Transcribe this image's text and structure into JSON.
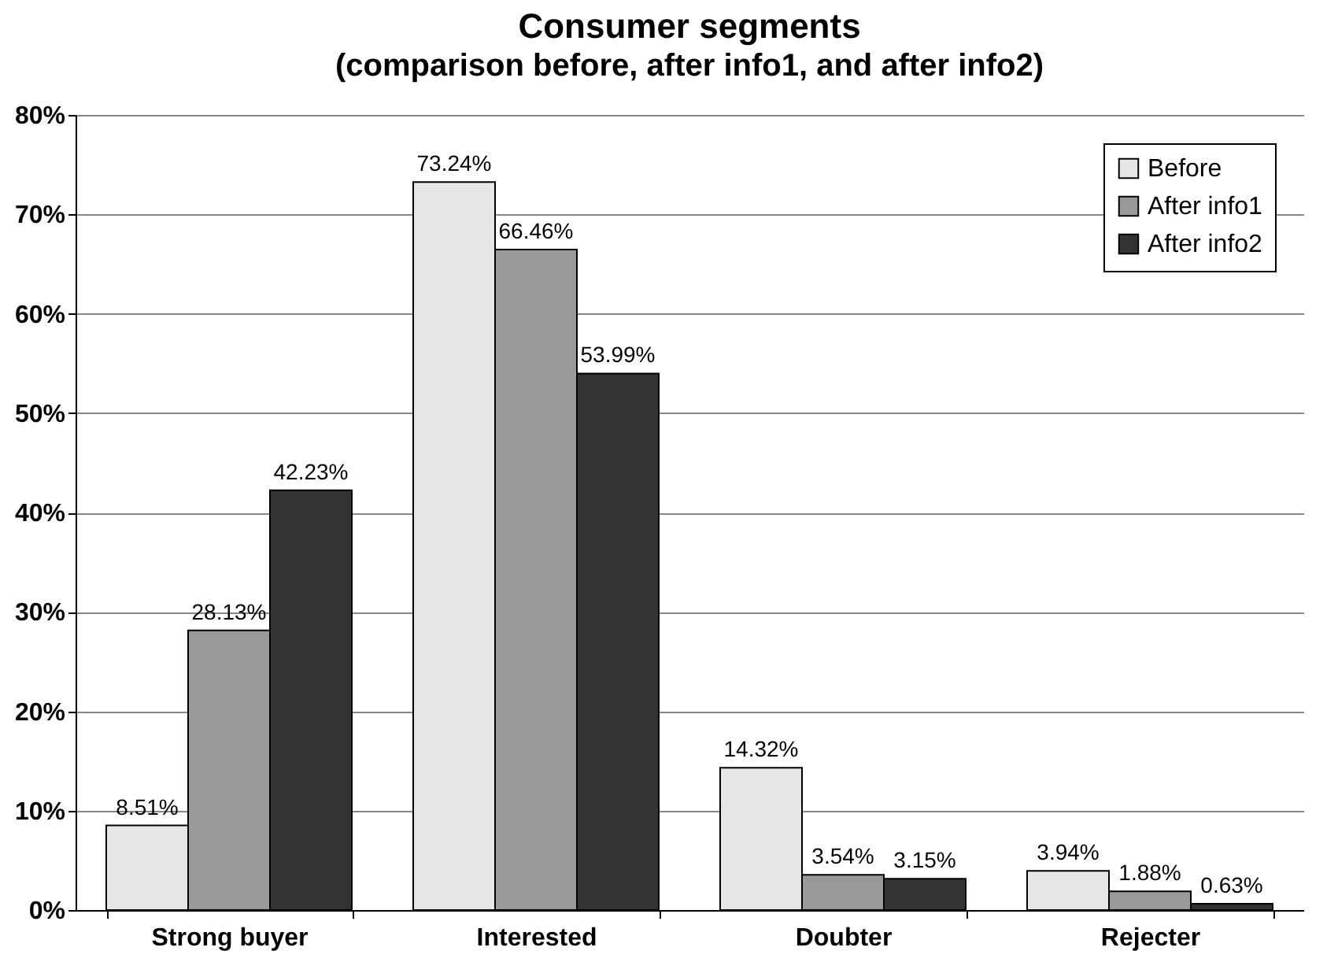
{
  "chart_data": {
    "type": "bar",
    "title": "Consumer segments",
    "subtitle": "(comparison before, after info1, and after info2)",
    "categories": [
      "Strong buyer",
      "Interested",
      "Doubter",
      "Rejecter"
    ],
    "series": [
      {
        "name": "Before",
        "color": "#e6e6e6",
        "values": [
          8.51,
          73.24,
          14.32,
          3.94
        ],
        "value_labels": [
          "8.51%",
          "73.24%",
          "14.32%",
          "3.94%"
        ]
      },
      {
        "name": "After info1",
        "color": "#999999",
        "values": [
          28.13,
          66.46,
          3.54,
          1.88
        ],
        "value_labels": [
          "28.13%",
          "66.46%",
          "3.54%",
          "1.88%"
        ]
      },
      {
        "name": "After info2",
        "color": "#333333",
        "values": [
          42.23,
          53.99,
          3.15,
          0.63
        ],
        "value_labels": [
          "42.23%",
          "53.99%",
          "3.15%",
          "0.63%"
        ]
      }
    ],
    "ylim": [
      0,
      80
    ],
    "yticks": [
      {
        "value": 0,
        "label": "0%"
      },
      {
        "value": 10,
        "label": "10%"
      },
      {
        "value": 20,
        "label": "20%"
      },
      {
        "value": 30,
        "label": "30%"
      },
      {
        "value": 40,
        "label": "40%"
      },
      {
        "value": 50,
        "label": "50%"
      },
      {
        "value": 60,
        "label": "60%"
      },
      {
        "value": 70,
        "label": "70%"
      },
      {
        "value": 80,
        "label": "80%"
      }
    ],
    "grid": "y",
    "legend": "top right"
  }
}
